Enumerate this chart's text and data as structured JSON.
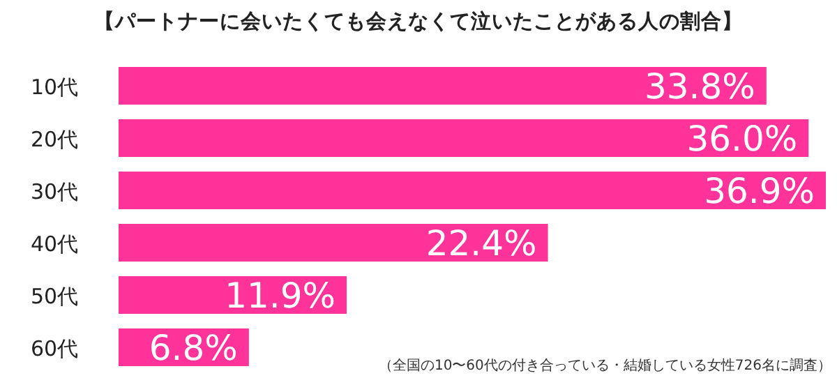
{
  "chart_data": {
    "type": "bar",
    "orientation": "horizontal",
    "title": "【パートナーに会いたくても会えなくて泣いたことがある人の割合】",
    "categories": [
      "10代",
      "20代",
      "30代",
      "40代",
      "50代",
      "60代"
    ],
    "values": [
      33.8,
      36.0,
      36.9,
      22.4,
      11.9,
      6.8
    ],
    "value_labels": [
      "33.8%",
      "36.0%",
      "36.9%",
      "22.4%",
      "11.9%",
      "6.8%"
    ],
    "color": "#ff3399",
    "annotations": [
      "（全国の10〜60代の付き合っている・結婚している女性726名に調査）"
    ]
  }
}
